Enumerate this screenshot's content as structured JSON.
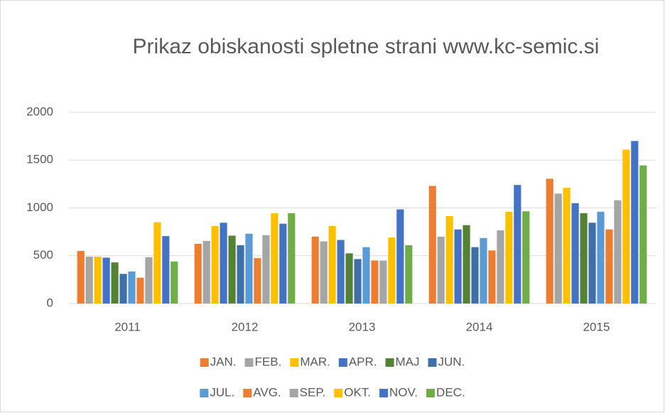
{
  "chart_data": {
    "type": "bar",
    "title": "Prikaz obiskanosti spletne strani www.kc-semic.si",
    "categories": [
      "2011",
      "2012",
      "2013",
      "2014",
      "2015"
    ],
    "series": [
      {
        "name": "JAN.",
        "color": "#ED7D31",
        "values": [
          550,
          625,
          700,
          1230,
          1305
        ]
      },
      {
        "name": "FEB.",
        "color": "#A5A5A5",
        "values": [
          490,
          655,
          650,
          700,
          1150
        ]
      },
      {
        "name": "MAR.",
        "color": "#FFC000",
        "values": [
          490,
          810,
          810,
          915,
          1210
        ]
      },
      {
        "name": "APR.",
        "color": "#4472C4",
        "values": [
          480,
          845,
          665,
          775,
          1050
        ]
      },
      {
        "name": "MAJ",
        "color": "#548235",
        "values": [
          430,
          710,
          525,
          820,
          945
        ]
      },
      {
        "name": "JUN.",
        "color": "#3F6FA8",
        "values": [
          310,
          610,
          465,
          590,
          845
        ]
      },
      {
        "name": "JUL.",
        "color": "#5B9BD5",
        "values": [
          335,
          730,
          590,
          685,
          960
        ]
      },
      {
        "name": "AVG.",
        "color": "#ED7D31",
        "values": [
          270,
          475,
          450,
          555,
          775
        ]
      },
      {
        "name": "SEP.",
        "color": "#A5A5A5",
        "values": [
          485,
          715,
          450,
          765,
          1080
        ]
      },
      {
        "name": "OKT.",
        "color": "#FFC000",
        "values": [
          850,
          945,
          690,
          960,
          1610
        ]
      },
      {
        "name": "NOV.",
        "color": "#4472C4",
        "values": [
          705,
          835,
          985,
          1240,
          1700
        ]
      },
      {
        "name": "DEC.",
        "color": "#70AD47",
        "values": [
          440,
          945,
          610,
          965,
          1445
        ]
      }
    ],
    "ylim": [
      0,
      2000
    ],
    "yticks": [
      0,
      500,
      1000,
      1500,
      2000
    ],
    "grid": true,
    "legend": "bottom"
  }
}
